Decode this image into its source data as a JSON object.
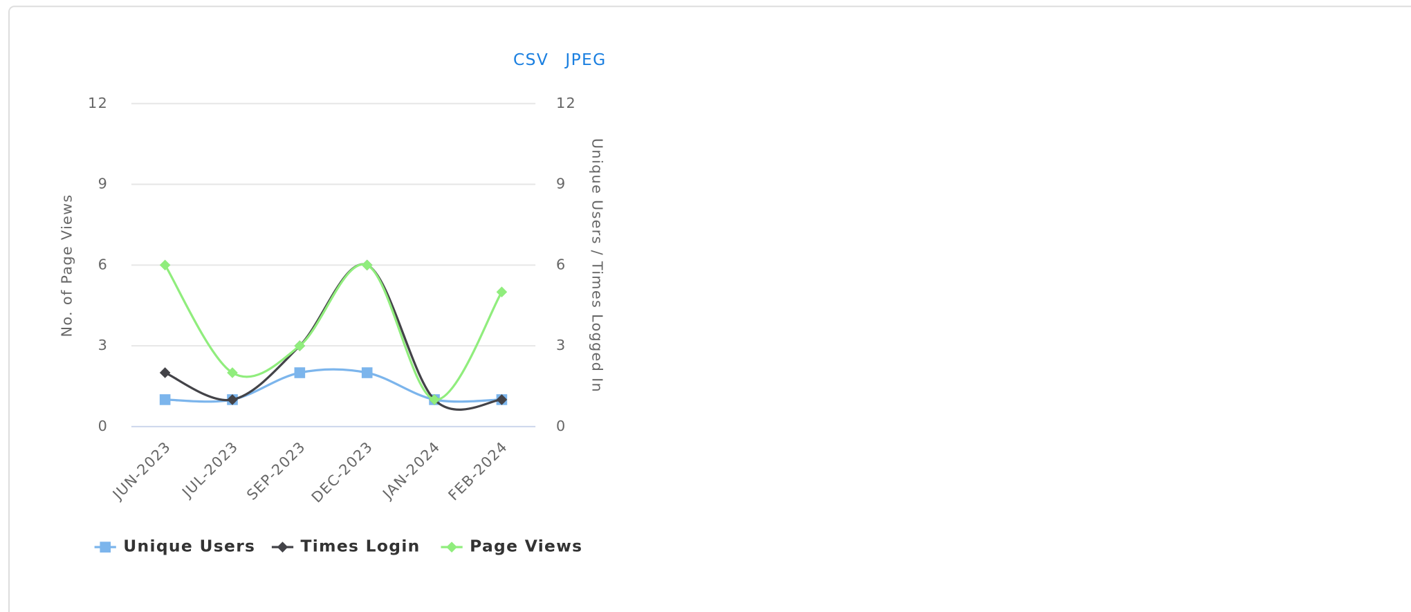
{
  "links": [
    "CSV",
    "JPEG"
  ],
  "chart_data": {
    "type": "line",
    "smooth": true,
    "categories": [
      "JUN-2023",
      "JUL-2023",
      "SEP-2023",
      "DEC-2023",
      "JAN-2024",
      "FEB-2024"
    ],
    "y_label": "No. of Page Views",
    "y2_label": "Unique Users / Times Logged In",
    "ylim": [
      0,
      12
    ],
    "yticks": [
      0,
      3,
      6,
      9,
      12
    ],
    "y2lim": [
      0,
      12
    ],
    "y2ticks": [
      0,
      3,
      6,
      9,
      12
    ],
    "grid": true,
    "legend": "bottom",
    "series": [
      {
        "name": "Unique Users",
        "color": "#7cb5ec",
        "marker": "square",
        "axis": "y2",
        "values": [
          1,
          1,
          2,
          2,
          1,
          1
        ]
      },
      {
        "name": "Times Login",
        "color": "#434348",
        "marker": "diamond",
        "axis": "y2",
        "values": [
          2,
          1,
          3,
          6,
          1,
          1
        ]
      },
      {
        "name": "Page Views",
        "color": "#90ed7d",
        "marker": "diamond",
        "axis": "y",
        "values": [
          6,
          2,
          3,
          6,
          1,
          5
        ]
      }
    ]
  }
}
